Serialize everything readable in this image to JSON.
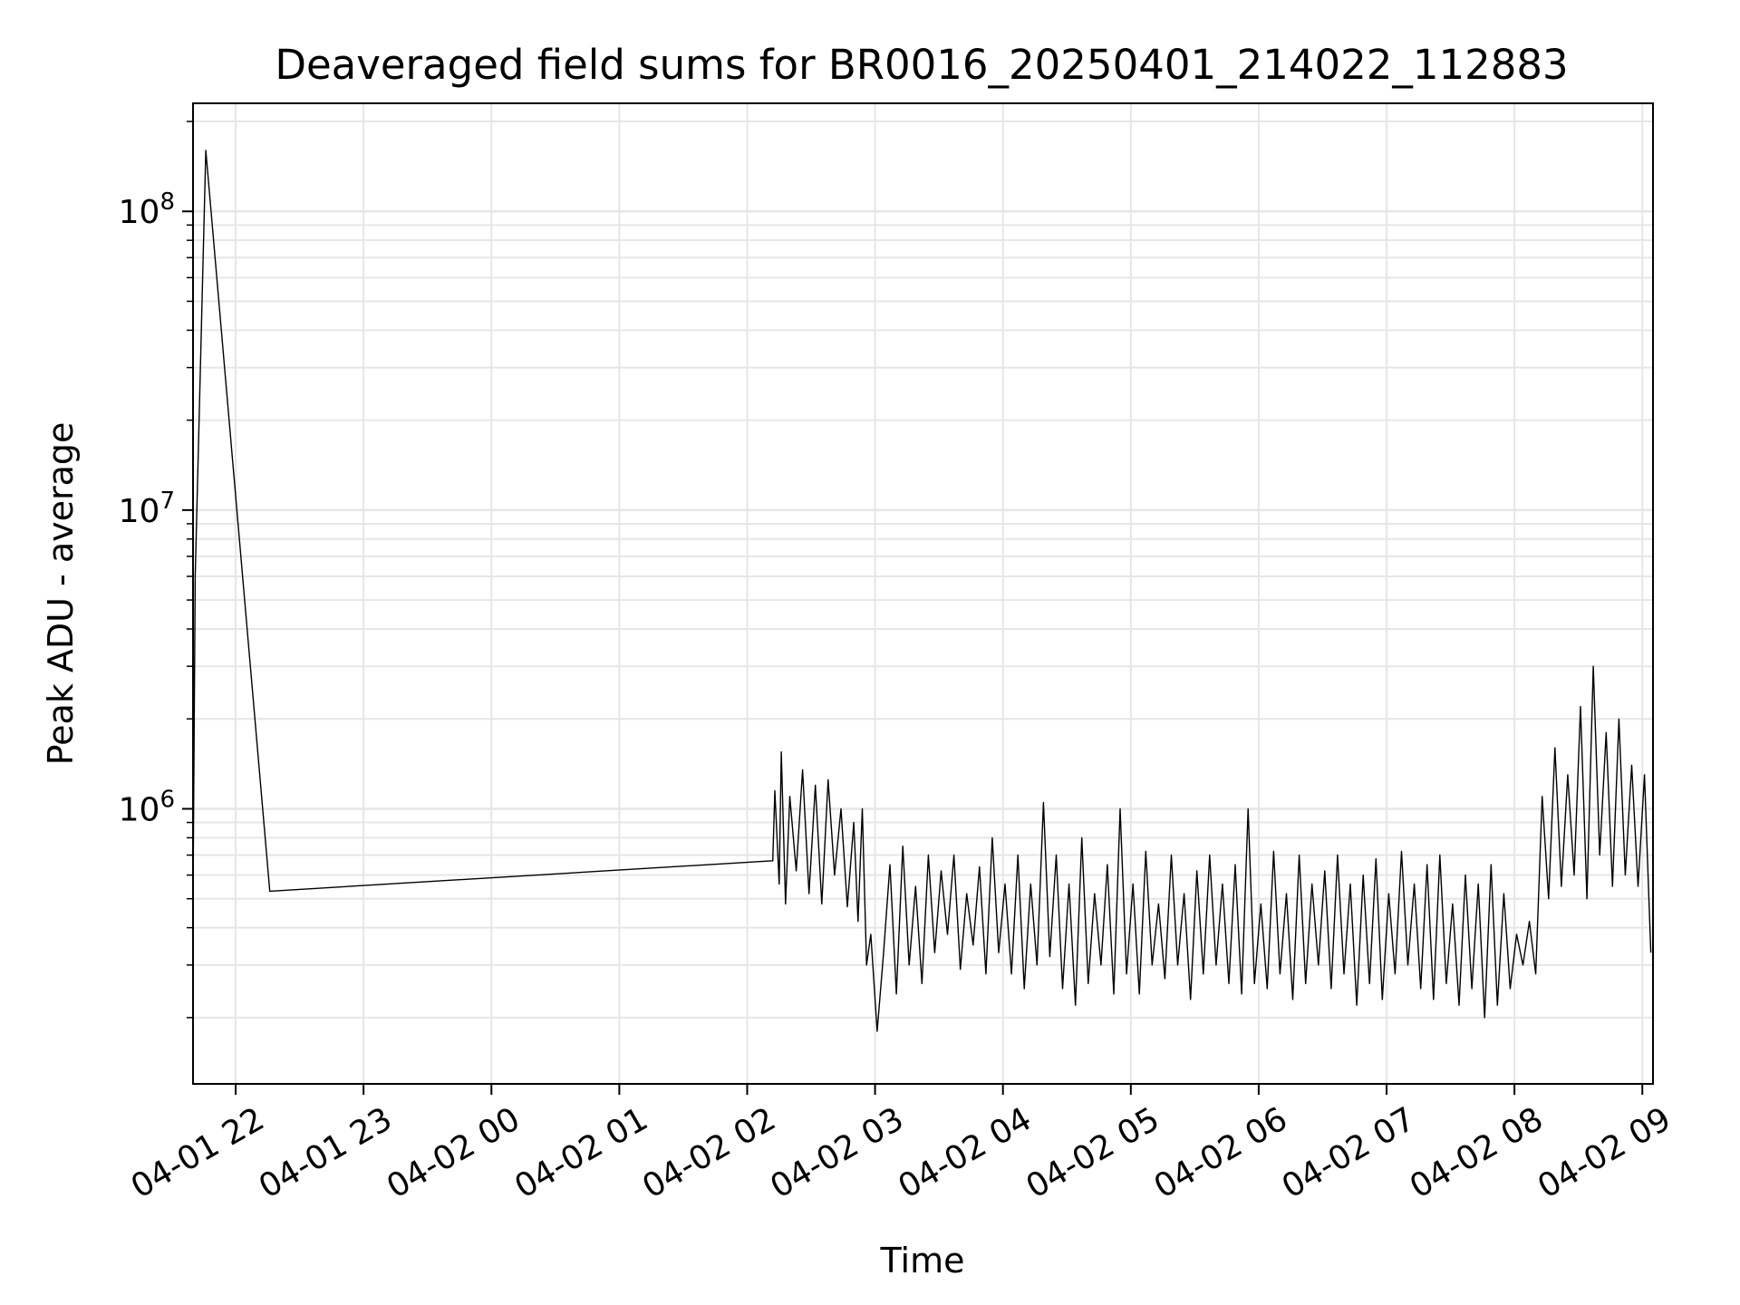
{
  "chart_data": {
    "type": "line",
    "title": "Deaveraged field sums for BR0016_20250401_214022_112883",
    "xlabel": "Time",
    "ylabel": "Peak ADU - average",
    "y_scale": "log",
    "grid": true,
    "grid_minor": true,
    "xlim": [
      "2025-04-01 21:40",
      "2025-04-02 09:05"
    ],
    "ylim": [
      120000,
      230000000
    ],
    "x_ticks": [
      "2025-04-01 22:00",
      "2025-04-01 23:00",
      "2025-04-02 00:00",
      "2025-04-02 01:00",
      "2025-04-02 02:00",
      "2025-04-02 03:00",
      "2025-04-02 04:00",
      "2025-04-02 05:00",
      "2025-04-02 06:00",
      "2025-04-02 07:00",
      "2025-04-02 08:00",
      "2025-04-02 09:00"
    ],
    "x_tick_labels": [
      "04-01 22",
      "04-01 23",
      "04-02 00",
      "04-02 01",
      "04-02 02",
      "04-02 03",
      "04-02 04",
      "04-02 05",
      "04-02 06",
      "04-02 07",
      "04-02 08",
      "04-02 09"
    ],
    "y_tick_labels": [
      {
        "value": 1000000,
        "base": "10",
        "exp": "6"
      },
      {
        "value": 10000000,
        "base": "10",
        "exp": "7"
      },
      {
        "value": 100000000,
        "base": "10",
        "exp": "8"
      }
    ],
    "line_color": "#000000",
    "series": [
      {
        "x": [
          "2025-04-01 21:40",
          "2025-04-01 21:41",
          "2025-04-01 21:46",
          "2025-04-01 22:16",
          "2025-04-02 02:12",
          "2025-04-02 02:13",
          "2025-04-02 02:15",
          "2025-04-02 02:16",
          "2025-04-02 02:18",
          "2025-04-02 02:20",
          "2025-04-02 02:23",
          "2025-04-02 02:26",
          "2025-04-02 02:29",
          "2025-04-02 02:32",
          "2025-04-02 02:35",
          "2025-04-02 02:38",
          "2025-04-02 02:41",
          "2025-04-02 02:44",
          "2025-04-02 02:47",
          "2025-04-02 02:50",
          "2025-04-02 02:52",
          "2025-04-02 02:54",
          "2025-04-02 02:56",
          "2025-04-02 02:58",
          "2025-04-02 03:01",
          "2025-04-02 03:04",
          "2025-04-02 03:07",
          "2025-04-02 03:10",
          "2025-04-02 03:13",
          "2025-04-02 03:16",
          "2025-04-02 03:19",
          "2025-04-02 03:22",
          "2025-04-02 03:25",
          "2025-04-02 03:28",
          "2025-04-02 03:31",
          "2025-04-02 03:34",
          "2025-04-02 03:37",
          "2025-04-02 03:40",
          "2025-04-02 03:43",
          "2025-04-02 03:46",
          "2025-04-02 03:49",
          "2025-04-02 03:52",
          "2025-04-02 03:55",
          "2025-04-02 03:58",
          "2025-04-02 04:01",
          "2025-04-02 04:04",
          "2025-04-02 04:07",
          "2025-04-02 04:10",
          "2025-04-02 04:13",
          "2025-04-02 04:16",
          "2025-04-02 04:19",
          "2025-04-02 04:22",
          "2025-04-02 04:25",
          "2025-04-02 04:28",
          "2025-04-02 04:31",
          "2025-04-02 04:34",
          "2025-04-02 04:37",
          "2025-04-02 04:40",
          "2025-04-02 04:43",
          "2025-04-02 04:46",
          "2025-04-02 04:49",
          "2025-04-02 04:52",
          "2025-04-02 04:55",
          "2025-04-02 04:58",
          "2025-04-02 05:01",
          "2025-04-02 05:04",
          "2025-04-02 05:07",
          "2025-04-02 05:10",
          "2025-04-02 05:13",
          "2025-04-02 05:16",
          "2025-04-02 05:19",
          "2025-04-02 05:22",
          "2025-04-02 05:25",
          "2025-04-02 05:28",
          "2025-04-02 05:31",
          "2025-04-02 05:34",
          "2025-04-02 05:37",
          "2025-04-02 05:40",
          "2025-04-02 05:43",
          "2025-04-02 05:46",
          "2025-04-02 05:49",
          "2025-04-02 05:52",
          "2025-04-02 05:55",
          "2025-04-02 05:58",
          "2025-04-02 06:01",
          "2025-04-02 06:04",
          "2025-04-02 06:07",
          "2025-04-02 06:10",
          "2025-04-02 06:13",
          "2025-04-02 06:16",
          "2025-04-02 06:19",
          "2025-04-02 06:22",
          "2025-04-02 06:25",
          "2025-04-02 06:28",
          "2025-04-02 06:31",
          "2025-04-02 06:34",
          "2025-04-02 06:37",
          "2025-04-02 06:40",
          "2025-04-02 06:43",
          "2025-04-02 06:46",
          "2025-04-02 06:49",
          "2025-04-02 06:52",
          "2025-04-02 06:55",
          "2025-04-02 06:58",
          "2025-04-02 07:01",
          "2025-04-02 07:04",
          "2025-04-02 07:07",
          "2025-04-02 07:10",
          "2025-04-02 07:13",
          "2025-04-02 07:16",
          "2025-04-02 07:19",
          "2025-04-02 07:22",
          "2025-04-02 07:25",
          "2025-04-02 07:28",
          "2025-04-02 07:31",
          "2025-04-02 07:34",
          "2025-04-02 07:37",
          "2025-04-02 07:40",
          "2025-04-02 07:43",
          "2025-04-02 07:46",
          "2025-04-02 07:49",
          "2025-04-02 07:52",
          "2025-04-02 07:55",
          "2025-04-02 07:58",
          "2025-04-02 08:01",
          "2025-04-02 08:04",
          "2025-04-02 08:07",
          "2025-04-02 08:10",
          "2025-04-02 08:13",
          "2025-04-02 08:16",
          "2025-04-02 08:19",
          "2025-04-02 08:22",
          "2025-04-02 08:25",
          "2025-04-02 08:28",
          "2025-04-02 08:31",
          "2025-04-02 08:34",
          "2025-04-02 08:37",
          "2025-04-02 08:40",
          "2025-04-02 08:43",
          "2025-04-02 08:46",
          "2025-04-02 08:49",
          "2025-04-02 08:52",
          "2025-04-02 08:55",
          "2025-04-02 08:58",
          "2025-04-02 09:01",
          "2025-04-02 09:04"
        ],
        "values": [
          500000,
          6000000,
          160000000,
          530000,
          670000,
          1150000,
          560000,
          1550000,
          480000,
          1100000,
          620000,
          1350000,
          520000,
          1200000,
          480000,
          1250000,
          600000,
          1000000,
          470000,
          900000,
          420000,
          1000000,
          300000,
          380000,
          180000,
          330000,
          650000,
          240000,
          750000,
          300000,
          550000,
          260000,
          700000,
          330000,
          620000,
          380000,
          700000,
          290000,
          520000,
          350000,
          640000,
          280000,
          800000,
          330000,
          560000,
          280000,
          700000,
          250000,
          560000,
          300000,
          1050000,
          320000,
          700000,
          250000,
          560000,
          220000,
          800000,
          260000,
          520000,
          300000,
          650000,
          240000,
          1000000,
          280000,
          560000,
          240000,
          720000,
          300000,
          480000,
          270000,
          700000,
          300000,
          520000,
          230000,
          620000,
          280000,
          700000,
          300000,
          560000,
          260000,
          650000,
          240000,
          1000000,
          260000,
          480000,
          250000,
          720000,
          280000,
          520000,
          230000,
          700000,
          260000,
          560000,
          300000,
          620000,
          250000,
          700000,
          280000,
          560000,
          220000,
          600000,
          260000,
          680000,
          230000,
          520000,
          280000,
          720000,
          300000,
          560000,
          250000,
          650000,
          230000,
          700000,
          260000,
          480000,
          220000,
          600000,
          250000,
          560000,
          200000,
          650000,
          220000,
          520000,
          250000,
          380000,
          300000,
          420000,
          280000,
          1100000,
          500000,
          1600000,
          550000,
          1300000,
          600000,
          2200000,
          500000,
          3000000,
          700000,
          1800000,
          550000,
          2000000,
          600000,
          1400000,
          550000,
          1300000,
          330000
        ]
      }
    ]
  }
}
